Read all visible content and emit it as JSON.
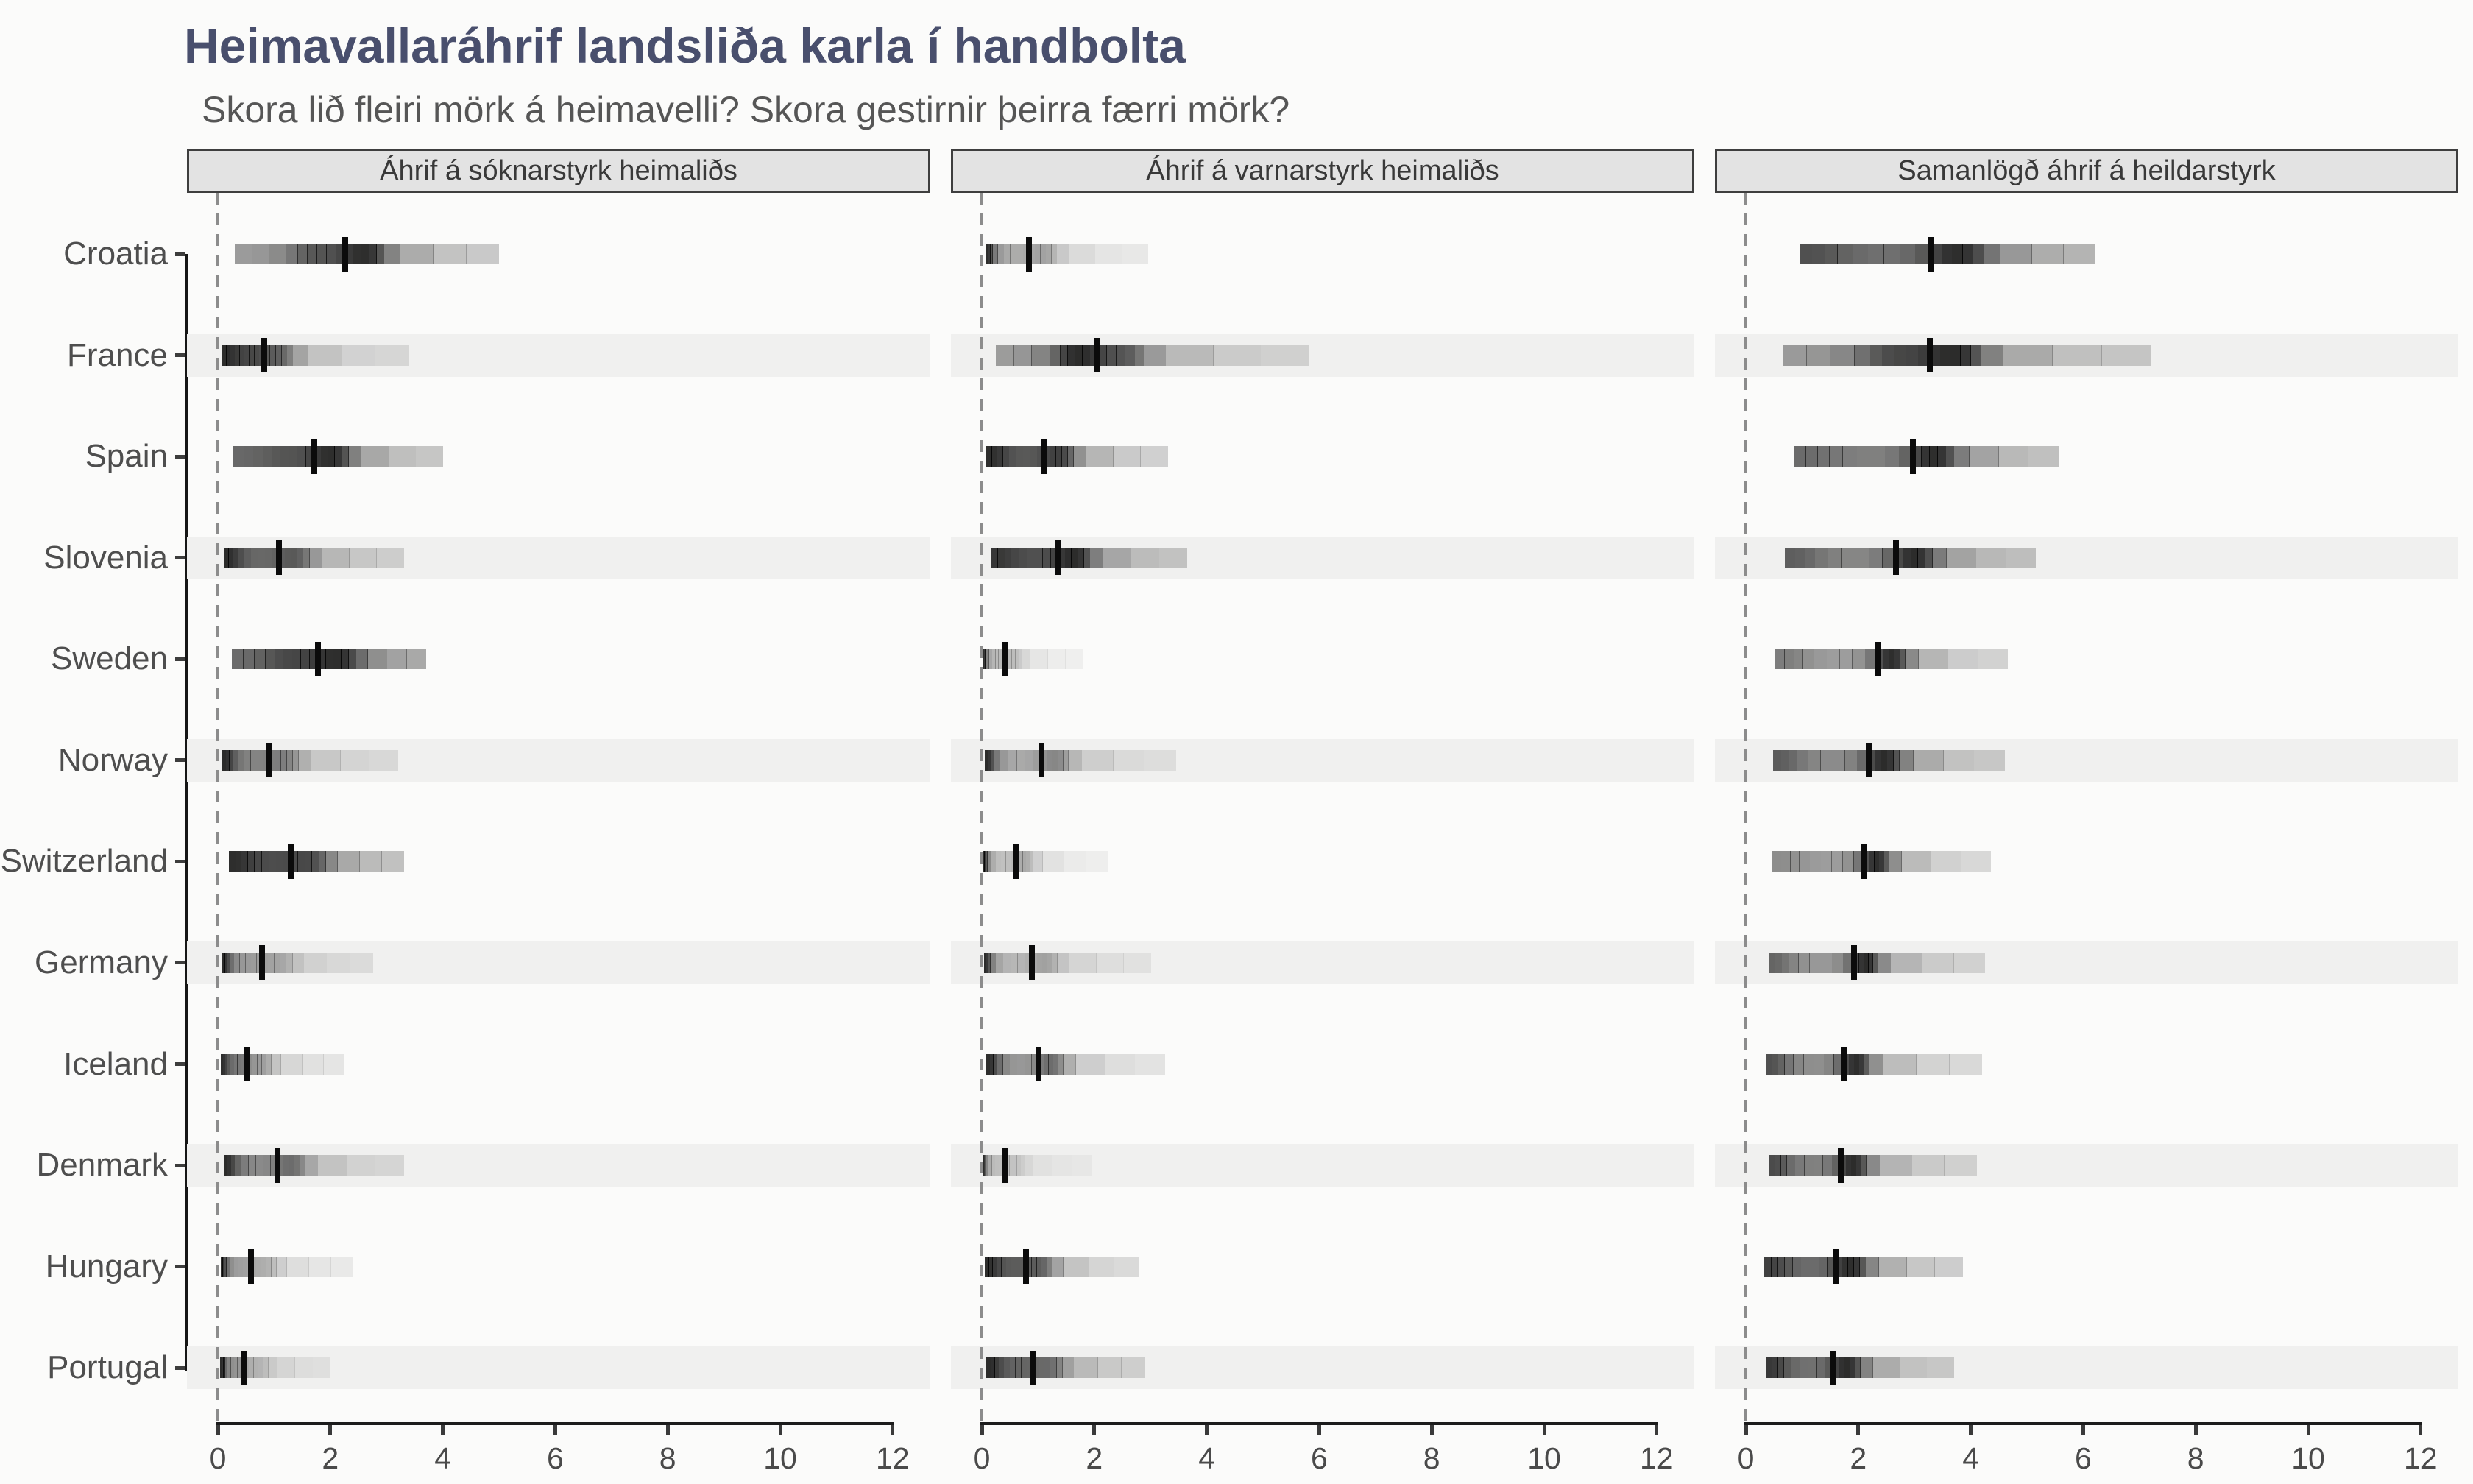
{
  "header": {
    "title": "Heimavallaráhrif landsliða karla í handbolta",
    "subtitle": "Skora lið fleiri mörk á heimavelli? Skora gestirnir þeirra færri mörk?"
  },
  "style": {
    "background": "#fbfbfa",
    "title_color": "#494f6d",
    "subtitle_color": "#565656",
    "strip_bg": "#e3e3e3",
    "strip_border": "#3e3e3e",
    "strip_text": "#393939",
    "row_stripe": "#f0f0ef",
    "axis_line": "#1c1c1c",
    "axis_text": "#4a4a4a",
    "zero_line_dash": "#8c8c8c",
    "interval_color": "#000000",
    "median_tick_color": "#0b0b0b"
  },
  "chart_data": {
    "type": "bar",
    "subtype": "gradient_interval_facets",
    "title": "Heimavallaráhrif landsliða karla í handbolta",
    "subtitle": "Skora lið fleiri mörk á heimavelli? Skora gestirnir þeirra færri mörk?",
    "facets": [
      "Áhrif á sóknarstyrk heimaliðs",
      "Áhrif á varnarstyrk heimaliðs",
      "Samanlögð áhrif á heildarstyrk"
    ],
    "countries": [
      "Croatia",
      "France",
      "Spain",
      "Slovenia",
      "Sweden",
      "Norway",
      "Switzerland",
      "Germany",
      "Iceland",
      "Denmark",
      "Hungary",
      "Portugal"
    ],
    "xlabel": "",
    "ylabel": "",
    "x_ticks": [
      0,
      2,
      4,
      6,
      8,
      10,
      12
    ],
    "x_domain": [
      0,
      12
    ],
    "zero_reference_line": 0,
    "grid": "off",
    "legend_position": "none",
    "quantile_probs": [
      0.025,
      0.2,
      0.5,
      0.8,
      0.975
    ],
    "series": [
      {
        "facet": "Áhrif á sóknarstyrk heimaliðs",
        "rows": [
          {
            "country": "Croatia",
            "median": 2.27,
            "q": [
              0.3,
              1.3,
              2.27,
              3.05,
              5.0
            ]
          },
          {
            "country": "France",
            "median": 0.82,
            "q": [
              0.07,
              0.32,
              0.82,
              1.4,
              3.4
            ]
          },
          {
            "country": "Spain",
            "median": 1.71,
            "q": [
              0.28,
              0.85,
              1.71,
              2.4,
              4.0
            ]
          },
          {
            "country": "Slovenia",
            "median": 1.08,
            "q": [
              0.1,
              0.38,
              1.08,
              1.7,
              3.3
            ]
          },
          {
            "country": "Sweden",
            "median": 1.78,
            "q": [
              0.25,
              0.9,
              1.78,
              2.55,
              3.7
            ]
          },
          {
            "country": "Norway",
            "median": 0.91,
            "q": [
              0.08,
              0.28,
              0.91,
              1.5,
              3.2
            ]
          },
          {
            "country": "Switzerland",
            "median": 1.29,
            "q": [
              0.2,
              0.56,
              1.29,
              2.0,
              3.3
            ]
          },
          {
            "country": "Germany",
            "median": 0.78,
            "q": [
              0.08,
              0.22,
              0.78,
              1.4,
              2.75
            ]
          },
          {
            "country": "Iceland",
            "median": 0.53,
            "q": [
              0.05,
              0.18,
              0.53,
              1.0,
              2.25
            ]
          },
          {
            "country": "Denmark",
            "median": 1.06,
            "q": [
              0.1,
              0.32,
              1.06,
              1.62,
              3.3
            ]
          },
          {
            "country": "Hungary",
            "median": 0.59,
            "q": [
              0.05,
              0.16,
              0.59,
              1.1,
              2.4
            ]
          },
          {
            "country": "Portugal",
            "median": 0.46,
            "q": [
              0.04,
              0.13,
              0.46,
              0.95,
              2.0
            ]
          }
        ]
      },
      {
        "facet": "Áhrif á varnarstyrk heimaliðs",
        "rows": [
          {
            "country": "Croatia",
            "median": 0.84,
            "q": [
              0.06,
              0.2,
              0.84,
              1.4,
              2.95
            ]
          },
          {
            "country": "France",
            "median": 2.05,
            "q": [
              0.25,
              1.3,
              2.05,
              3.0,
              5.8
            ]
          },
          {
            "country": "Spain",
            "median": 1.1,
            "q": [
              0.08,
              0.4,
              1.1,
              1.7,
              3.3
            ]
          },
          {
            "country": "Slovenia",
            "median": 1.36,
            "q": [
              0.16,
              0.56,
              1.36,
              2.0,
              3.65
            ]
          },
          {
            "country": "Sweden",
            "median": 0.41,
            "q": [
              0.02,
              0.08,
              0.41,
              0.75,
              1.8
            ]
          },
          {
            "country": "Norway",
            "median": 1.06,
            "q": [
              0.05,
              0.22,
              1.06,
              1.6,
              3.45
            ]
          },
          {
            "country": "Switzerland",
            "median": 0.6,
            "q": [
              0.02,
              0.1,
              0.6,
              0.95,
              2.25
            ]
          },
          {
            "country": "Germany",
            "median": 0.89,
            "q": [
              0.04,
              0.16,
              0.89,
              1.4,
              3.0
            ]
          },
          {
            "country": "Iceland",
            "median": 1.01,
            "q": [
              0.08,
              0.28,
              1.01,
              1.5,
              3.25
            ]
          },
          {
            "country": "Denmark",
            "median": 0.42,
            "q": [
              0.02,
              0.07,
              0.42,
              0.8,
              1.95
            ]
          },
          {
            "country": "Hungary",
            "median": 0.79,
            "q": [
              0.05,
              0.28,
              0.79,
              1.3,
              2.8
            ]
          },
          {
            "country": "Portugal",
            "median": 0.9,
            "q": [
              0.08,
              0.32,
              0.9,
              1.5,
              2.9
            ]
          }
        ]
      },
      {
        "facet": "Samanlögð áhrif á heildarstyrk",
        "rows": [
          {
            "country": "Croatia",
            "median": 3.29,
            "q": [
              0.95,
              1.7,
              3.29,
              4.35,
              6.2
            ]
          },
          {
            "country": "France",
            "median": 3.27,
            "q": [
              0.65,
              2.06,
              3.27,
              4.3,
              7.2
            ]
          },
          {
            "country": "Spain",
            "median": 2.97,
            "q": [
              0.85,
              1.55,
              2.97,
              3.8,
              5.55
            ]
          },
          {
            "country": "Slovenia",
            "median": 2.67,
            "q": [
              0.7,
              1.28,
              2.67,
              3.4,
              5.15
            ]
          },
          {
            "country": "Sweden",
            "median": 2.34,
            "q": [
              0.52,
              1.06,
              2.34,
              2.9,
              4.65
            ]
          },
          {
            "country": "Norway",
            "median": 2.19,
            "q": [
              0.48,
              0.96,
              2.19,
              2.8,
              4.6
            ]
          },
          {
            "country": "Switzerland",
            "median": 2.11,
            "q": [
              0.46,
              1.0,
              2.11,
              2.6,
              4.35
            ]
          },
          {
            "country": "Germany",
            "median": 1.92,
            "q": [
              0.4,
              0.8,
              1.92,
              2.4,
              4.25
            ]
          },
          {
            "country": "Iceland",
            "median": 1.74,
            "q": [
              0.35,
              0.72,
              1.74,
              2.26,
              4.2
            ]
          },
          {
            "country": "Denmark",
            "median": 1.69,
            "q": [
              0.4,
              0.76,
              1.69,
              2.2,
              4.1
            ]
          },
          {
            "country": "Hungary",
            "median": 1.6,
            "q": [
              0.33,
              0.72,
              1.6,
              2.2,
              3.85
            ]
          },
          {
            "country": "Portugal",
            "median": 1.56,
            "q": [
              0.36,
              0.7,
              1.56,
              2.1,
              3.7
            ]
          }
        ]
      }
    ]
  }
}
